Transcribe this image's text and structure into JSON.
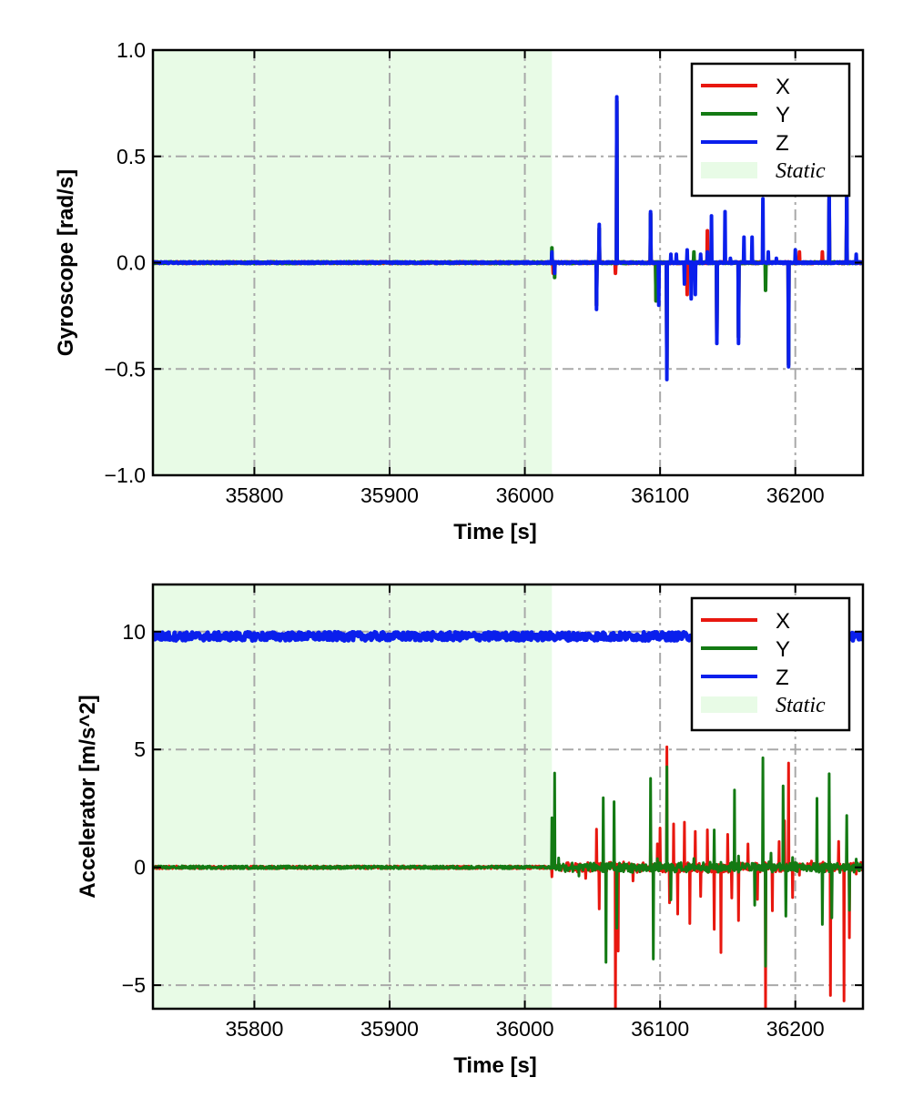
{
  "chart_data": [
    {
      "type": "line",
      "ylabel": "Gyroscope [rad/s]",
      "xlabel": "Time [s]",
      "xlim": [
        35725,
        36250
      ],
      "ylim": [
        -1.0,
        1.0
      ],
      "xticks": [
        35800,
        35900,
        36000,
        36100,
        36200
      ],
      "xtick_labels": [
        "35800",
        "35900",
        "36000",
        "36100",
        "36200"
      ],
      "yticks": [
        -1.0,
        -0.5,
        0.0,
        0.5,
        1.0
      ],
      "ytick_labels": [
        "−1.0",
        "−0.5",
        "0.0",
        "0.5",
        "1.0"
      ],
      "grid": true,
      "legend_position": "top-right",
      "static_region": {
        "label": "Static",
        "x": [
          35725,
          36020
        ],
        "color": "#e8fbe6"
      },
      "series": [
        {
          "name": "X",
          "color": "#e8170f",
          "baseline": 0.0,
          "points": [
            [
              36020,
              0.04
            ],
            [
              36021,
              -0.05
            ],
            [
              36053,
              -0.2
            ],
            [
              36055,
              0.16
            ],
            [
              36067,
              -0.05
            ],
            [
              36068,
              0.76
            ],
            [
              36070,
              0.0
            ],
            [
              36093,
              0.23
            ],
            [
              36097,
              -0.18
            ],
            [
              36105,
              -0.5
            ],
            [
              36120,
              -0.15
            ],
            [
              36135,
              0.15
            ],
            [
              36142,
              -0.35
            ],
            [
              36158,
              -0.35
            ],
            [
              36195,
              -0.48
            ],
            [
              36203,
              0.05
            ],
            [
              36220,
              0.05
            ],
            [
              36225,
              0.3
            ],
            [
              36238,
              0.3
            ]
          ]
        },
        {
          "name": "Y",
          "color": "#137a13",
          "baseline": 0.0,
          "points": [
            [
              36020,
              0.07
            ],
            [
              36022,
              -0.07
            ],
            [
              36053,
              -0.2
            ],
            [
              36055,
              0.16
            ],
            [
              36068,
              0.76
            ],
            [
              36093,
              0.23
            ],
            [
              36097,
              -0.18
            ],
            [
              36105,
              -0.5
            ],
            [
              36125,
              0.05
            ],
            [
              36142,
              -0.35
            ],
            [
              36158,
              -0.35
            ],
            [
              36178,
              -0.13
            ],
            [
              36195,
              -0.48
            ],
            [
              36225,
              0.3
            ],
            [
              36238,
              0.3
            ]
          ]
        },
        {
          "name": "Z",
          "color": "#0a1fec",
          "baseline": 0.0,
          "points": [
            [
              36020,
              0.05
            ],
            [
              36022,
              -0.05
            ],
            [
              36053,
              -0.22
            ],
            [
              36055,
              0.18
            ],
            [
              36068,
              0.78
            ],
            [
              36093,
              0.24
            ],
            [
              36099,
              -0.2
            ],
            [
              36105,
              -0.55
            ],
            [
              36108,
              0.04
            ],
            [
              36112,
              0.04
            ],
            [
              36118,
              -0.1
            ],
            [
              36120,
              0.06
            ],
            [
              36123,
              -0.17
            ],
            [
              36126,
              -0.15
            ],
            [
              36130,
              0.04
            ],
            [
              36135,
              0.05
            ],
            [
              36138,
              0.22
            ],
            [
              36142,
              -0.38
            ],
            [
              36148,
              0.24
            ],
            [
              36152,
              0.02
            ],
            [
              36158,
              -0.38
            ],
            [
              36162,
              0.12
            ],
            [
              36168,
              0.12
            ],
            [
              36176,
              0.3
            ],
            [
              36180,
              0.05
            ],
            [
              36186,
              0.02
            ],
            [
              36195,
              -0.49
            ],
            [
              36200,
              0.06
            ],
            [
              36225,
              0.35
            ],
            [
              36238,
              0.35
            ],
            [
              36245,
              0.04
            ]
          ]
        }
      ]
    },
    {
      "type": "line",
      "ylabel": "Accelerator [m/s^2]",
      "xlabel": "Time [s]",
      "xlim": [
        35725,
        36250
      ],
      "ylim": [
        -6,
        12
      ],
      "xticks": [
        35800,
        35900,
        36000,
        36100,
        36200
      ],
      "xtick_labels": [
        "35800",
        "35900",
        "36000",
        "36100",
        "36200"
      ],
      "yticks": [
        -5,
        0,
        5,
        10
      ],
      "ytick_labels": [
        "−5",
        "0",
        "5",
        "10"
      ],
      "grid": true,
      "legend_position": "top-right",
      "static_region": {
        "label": "Static",
        "x": [
          35725,
          36020
        ],
        "color": "#e8fbe6"
      },
      "series": [
        {
          "name": "X",
          "color": "#e8170f",
          "baseline": 0.0,
          "points": [
            [
              36020,
              -0.4
            ],
            [
              36045,
              -0.3
            ],
            [
              36053,
              1.6
            ],
            [
              36055,
              -1.7
            ],
            [
              36060,
              0.3
            ],
            [
              36067,
              -6.0
            ],
            [
              36069,
              -3.5
            ],
            [
              36080,
              -0.5
            ],
            [
              36093,
              1.6
            ],
            [
              36098,
              1.0
            ],
            [
              36100,
              1.5
            ],
            [
              36105,
              5.2
            ],
            [
              36107,
              -1.5
            ],
            [
              36110,
              2.0
            ],
            [
              36113,
              -2.0
            ],
            [
              36118,
              1.8
            ],
            [
              36122,
              -2.3
            ],
            [
              36126,
              1.6
            ],
            [
              36130,
              -1.3
            ],
            [
              36135,
              1.7
            ],
            [
              36140,
              -2.8
            ],
            [
              36145,
              -3.5
            ],
            [
              36150,
              1.3
            ],
            [
              36153,
              -1.4
            ],
            [
              36158,
              -2.2
            ],
            [
              36165,
              1.0
            ],
            [
              36172,
              -1.2
            ],
            [
              36178,
              -6.0
            ],
            [
              36183,
              -2.0
            ],
            [
              36188,
              1.2
            ],
            [
              36192,
              2.0
            ],
            [
              36195,
              4.4
            ],
            [
              36198,
              -1.2
            ],
            [
              36203,
              -0.5
            ],
            [
              36212,
              0.2
            ],
            [
              36226,
              -5.6
            ],
            [
              36232,
              1.2
            ],
            [
              36236,
              -5.8
            ],
            [
              36240,
              -3.0
            ],
            [
              36245,
              -0.3
            ]
          ]
        },
        {
          "name": "Y",
          "color": "#137a13",
          "baseline": 0.0,
          "points": [
            [
              36020,
              2.1
            ],
            [
              36022,
              4.0
            ],
            [
              36025,
              0.5
            ],
            [
              36040,
              -0.3
            ],
            [
              36058,
              2.8
            ],
            [
              36060,
              -4.0
            ],
            [
              36066,
              2.8
            ],
            [
              36068,
              -2.5
            ],
            [
              36070,
              0.2
            ],
            [
              36093,
              3.7
            ],
            [
              36095,
              -4.0
            ],
            [
              36098,
              0.5
            ],
            [
              36105,
              4.1
            ],
            [
              36108,
              -1.3
            ],
            [
              36125,
              0.5
            ],
            [
              36140,
              1.7
            ],
            [
              36155,
              3.4
            ],
            [
              36158,
              0.5
            ],
            [
              36170,
              -1.5
            ],
            [
              36176,
              4.8
            ],
            [
              36178,
              -4.3
            ],
            [
              36182,
              0.5
            ],
            [
              36191,
              3.6
            ],
            [
              36193,
              -2.1
            ],
            [
              36198,
              0.3
            ],
            [
              36216,
              2.8
            ],
            [
              36220,
              -2.5
            ],
            [
              36225,
              3.9
            ],
            [
              36227,
              -2.0
            ],
            [
              36238,
              2.3
            ],
            [
              36240,
              -1.8
            ],
            [
              36245,
              0.3
            ]
          ]
        },
        {
          "name": "Z",
          "color": "#0a1fec",
          "baseline": 9.8,
          "points": []
        }
      ]
    }
  ],
  "colors": {
    "grid": "#a9a9a9",
    "static_fill": "#e8fbe6"
  }
}
